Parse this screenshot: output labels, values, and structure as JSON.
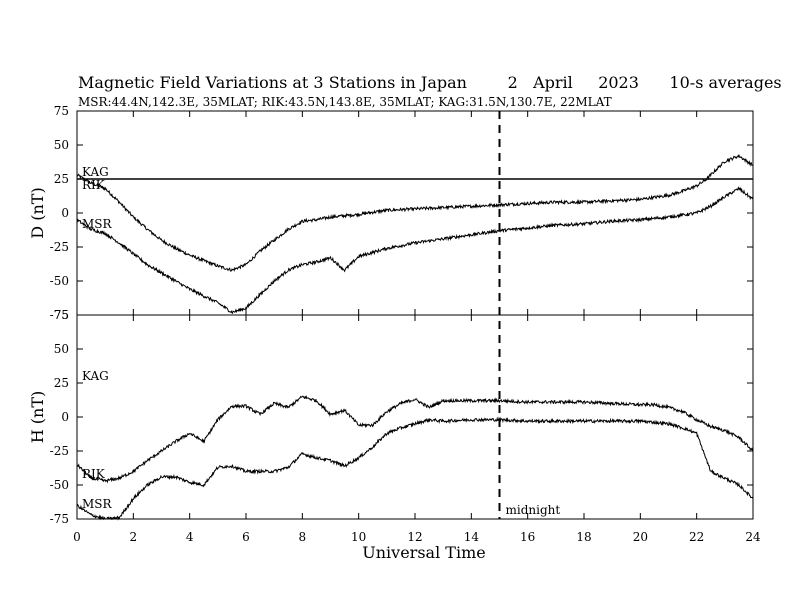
{
  "chart_data": {
    "type": "line",
    "title": "Magnetic Field Variations at 3 Stations in Japan        2   April     2023      10-s averages",
    "subtitle": "MSR:44.4N,142.3E, 35MLAT;  RIK:43.5N,143.8E, 35MLAT;  KAG:31.5N,130.7E, 22MLAT",
    "xlabel": "Universal Time",
    "xlim": [
      0,
      24
    ],
    "xticks": [
      "0",
      "2",
      "4",
      "6",
      "8",
      "10",
      "12",
      "14",
      "16",
      "18",
      "20",
      "22",
      "24"
    ],
    "midnight_ut": 15,
    "midnight_label": "midnight",
    "grid": false,
    "panels": [
      {
        "ylabel": "D (nT)",
        "ylim": [
          -75,
          75
        ],
        "yticks": [
          "75",
          "50",
          "25",
          "0",
          "-25",
          "-50",
          "-75"
        ],
        "series": [
          {
            "name": "KAG",
            "x": [
              0,
              24
            ],
            "y": [
              25,
              25
            ]
          },
          {
            "name": "RIK",
            "x": [
              0,
              0.5,
              1,
              1.5,
              2,
              2.5,
              3,
              3.5,
              4,
              4.5,
              5,
              5.5,
              6,
              6.5,
              7,
              7.5,
              8,
              8.5,
              9,
              9.5,
              10,
              11,
              12,
              13,
              14,
              15,
              16,
              17,
              18,
              19,
              20,
              21,
              21.5,
              22,
              22.3,
              22.6,
              23,
              23.5,
              24
            ],
            "y": [
              28,
              22,
              18,
              8,
              -3,
              -12,
              -20,
              -26,
              -31,
              -35,
              -39,
              -42,
              -38,
              -28,
              -20,
              -12,
              -6,
              -5,
              -3,
              -2,
              -1,
              2,
              3,
              4,
              5,
              6,
              7,
              8,
              8,
              9,
              10,
              13,
              16,
              20,
              24,
              30,
              38,
              42,
              35
            ]
          },
          {
            "name": "MSR",
            "x": [
              0,
              0.5,
              1,
              1.5,
              2,
              2.5,
              3,
              3.5,
              4,
              4.5,
              5,
              5.5,
              6,
              6.5,
              7,
              7.5,
              8,
              8.5,
              9,
              9.5,
              10,
              11,
              12,
              13,
              14,
              15,
              16,
              17,
              18,
              19,
              20,
              21,
              22,
              22.5,
              23,
              23.5,
              24
            ],
            "y": [
              -5,
              -12,
              -15,
              -22,
              -30,
              -38,
              -44,
              -50,
              -56,
              -61,
              -66,
              -73,
              -70,
              -60,
              -50,
              -42,
              -38,
              -36,
              -33,
              -42,
              -32,
              -26,
              -22,
              -19,
              -16,
              -13,
              -11,
              -9,
              -8,
              -6,
              -5,
              -3,
              0,
              5,
              12,
              18,
              10
            ]
          }
        ],
        "labels": [
          "KAG",
          "RIK",
          "MSR"
        ]
      },
      {
        "ylabel": "H (nT)",
        "ylim": [
          -75,
          75
        ],
        "yticks": [
          "75",
          "50",
          "25",
          "0",
          "-25",
          "-50",
          "-75"
        ],
        "series": [
          {
            "name": "KAG",
            "x": [
              0,
              0.5,
              1,
              1.5,
              2,
              2.5,
              3,
              3.5,
              4,
              4.5,
              5,
              5.5,
              6,
              6.5,
              7,
              7.5,
              8,
              8.5,
              9,
              9.5,
              10,
              10.5,
              11,
              11.5,
              12,
              12.5,
              13,
              14,
              15,
              16,
              17,
              18,
              19,
              20,
              20.5,
              21,
              21.5,
              22,
              22.5,
              23,
              23.5,
              24
            ],
            "y": [
              -35,
              -45,
              -47,
              -45,
              -40,
              -32,
              -25,
              -18,
              -12,
              -18,
              -2,
              8,
              8,
              2,
              10,
              7,
              15,
              12,
              2,
              5,
              -6,
              -6,
              4,
              10,
              13,
              7,
              12,
              12,
              12,
              11,
              11,
              11,
              10,
              9,
              9,
              7,
              4,
              -2,
              -7,
              -10,
              -15,
              -25
            ]
          },
          {
            "name": "RIK",
            "x": [
              0,
              0.5,
              1,
              1.5,
              2,
              2.5,
              3,
              3.5,
              4,
              4.5,
              5,
              5.5,
              6,
              6.5,
              7,
              7.5,
              8,
              8.5,
              9,
              9.5,
              10,
              10.5,
              11,
              11.5,
              12,
              12.5,
              13,
              14,
              15,
              16,
              17,
              18,
              19,
              20,
              20.5,
              21,
              21.5,
              22,
              22.5,
              23,
              23.5,
              24
            ],
            "y": [
              -65,
              -72,
              -75,
              -74,
              -60,
              -50,
              -44,
              -44,
              -48,
              -50,
              -37,
              -36,
              -40,
              -40,
              -40,
              -37,
              -27,
              -30,
              -32,
              -36,
              -30,
              -22,
              -12,
              -8,
              -5,
              -2,
              -3,
              -2,
              -2,
              -3,
              -3,
              -3,
              -3,
              -3,
              -4,
              -5,
              -8,
              -12,
              -40,
              -45,
              -50,
              -60
            ]
          }
        ],
        "labels": [
          "KAG",
          "RIK",
          "MSR"
        ]
      }
    ]
  }
}
